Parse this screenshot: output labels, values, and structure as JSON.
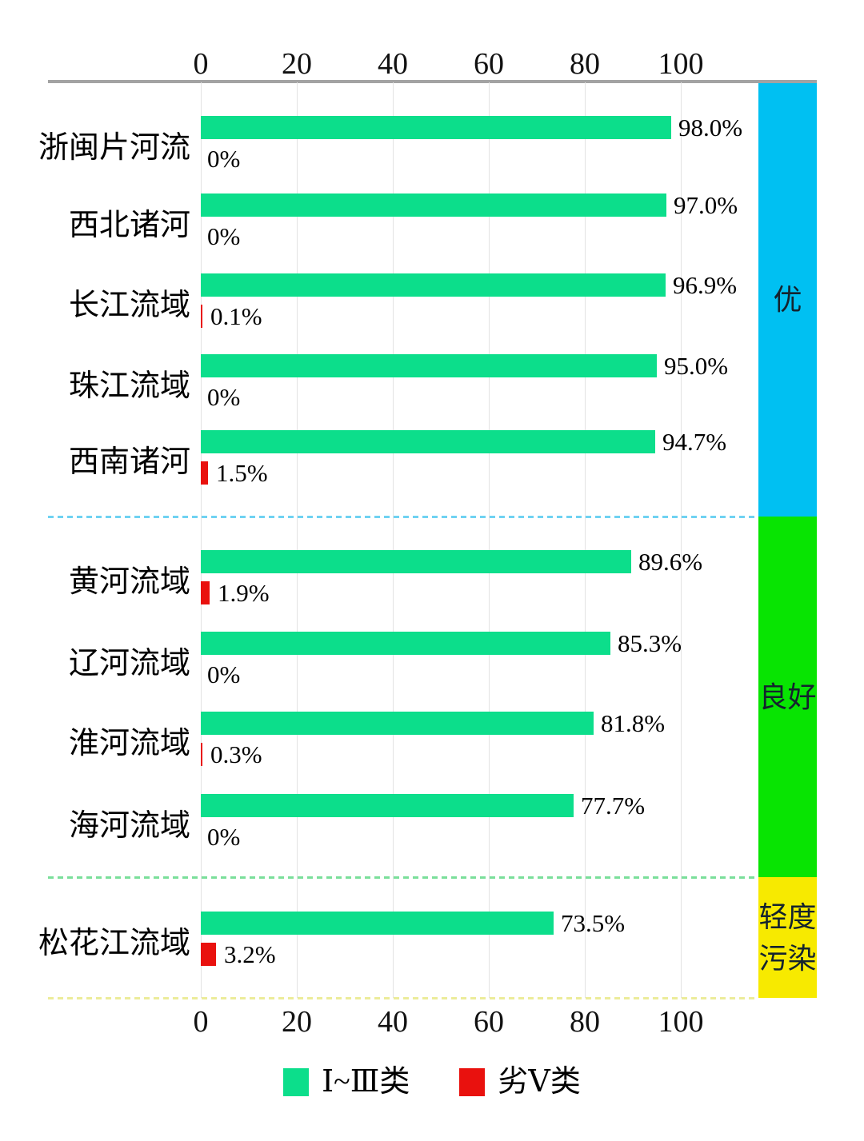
{
  "chart_data": {
    "type": "bar",
    "orientation": "horizontal",
    "title": "",
    "xlabel": "",
    "ylabel": "",
    "x_axis": {
      "min": 0,
      "max": 100,
      "ticks": [
        0,
        20,
        40,
        60,
        80,
        100
      ],
      "shown_on": "top_and_bottom",
      "grid": true
    },
    "series": [
      {
        "name": "Ⅰ~Ⅲ类",
        "color": "#0cde8b"
      },
      {
        "name": "劣Ⅴ类",
        "color": "#e9110e"
      }
    ],
    "rows": [
      {
        "label": "浙闽片河流",
        "good_value": 98.0,
        "good_label": "98.0%",
        "bad_value": 0,
        "bad_label": "0%"
      },
      {
        "label": "西北诸河",
        "good_value": 97.0,
        "good_label": "97.0%",
        "bad_value": 0,
        "bad_label": "0%"
      },
      {
        "label": "长江流域",
        "good_value": 96.9,
        "good_label": "96.9%",
        "bad_value": 0.1,
        "bad_label": "0.1%"
      },
      {
        "label": "珠江流域",
        "good_value": 95.0,
        "good_label": "95.0%",
        "bad_value": 0,
        "bad_label": "0%"
      },
      {
        "label": "西南诸河",
        "good_value": 94.7,
        "good_label": "94.7%",
        "bad_value": 1.5,
        "bad_label": "1.5%"
      },
      {
        "label": "黄河流域",
        "good_value": 89.6,
        "good_label": "89.6%",
        "bad_value": 1.9,
        "bad_label": "1.9%"
      },
      {
        "label": "辽河流域",
        "good_value": 85.3,
        "good_label": "85.3%",
        "bad_value": 0,
        "bad_label": "0%"
      },
      {
        "label": "淮河流域",
        "good_value": 81.8,
        "good_label": "81.8%",
        "bad_value": 0.3,
        "bad_label": "0.3%"
      },
      {
        "label": "海河流域",
        "good_value": 77.7,
        "good_label": "77.7%",
        "bad_value": 0,
        "bad_label": "0%"
      },
      {
        "label": "松花江流域",
        "good_value": 73.5,
        "good_label": "73.5%",
        "bad_value": 3.2,
        "bad_label": "3.2%"
      }
    ],
    "quality_bands": [
      {
        "label_lines": [
          "优"
        ],
        "color": "#00c0f2",
        "separator_color": "#6fd2f2",
        "row_count": 5
      },
      {
        "label_lines": [
          "良好"
        ],
        "color": "#08e402",
        "separator_color": "#7adf9a",
        "row_count": 4
      },
      {
        "label_lines": [
          "轻度",
          "污染"
        ],
        "color": "#f7ea00",
        "separator_color": "#ecec9a",
        "row_count": 1
      }
    ],
    "legend": [
      {
        "label": "Ⅰ~Ⅲ类",
        "color": "#0cde8b"
      },
      {
        "label": "劣Ⅴ类",
        "color": "#e9110e"
      }
    ],
    "legend_position": "bottom_center"
  },
  "colors": {
    "axis_line": "#a3a3a3",
    "gridline": "#e3e3e3",
    "text": "#000000",
    "background": "#ffffff"
  }
}
